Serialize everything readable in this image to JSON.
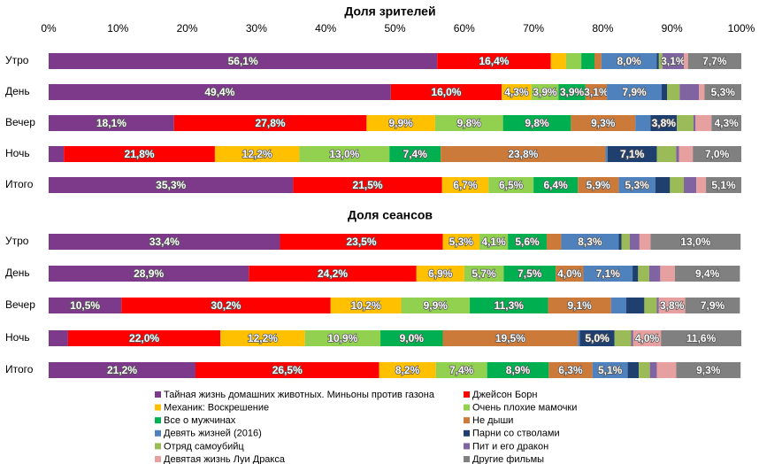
{
  "chart_data": [
    {
      "type": "stacked-bar",
      "title": "Доля зрителей",
      "categories": [
        "Утро",
        "День",
        "Вечер",
        "Ночь",
        "Итого"
      ],
      "xlim": [
        0,
        100
      ],
      "xticks": [
        {
          "value": 0,
          "label": "0%"
        },
        {
          "value": 10,
          "label": "10%"
        },
        {
          "value": 20,
          "label": "20%"
        },
        {
          "value": 30,
          "label": "30%"
        },
        {
          "value": 40,
          "label": "40%"
        },
        {
          "value": 50,
          "label": "50%"
        },
        {
          "value": 60,
          "label": "60%"
        },
        {
          "value": 70,
          "label": "70%"
        },
        {
          "value": 80,
          "label": "80%"
        },
        {
          "value": 90,
          "label": "90%"
        },
        {
          "value": 100,
          "label": "100%"
        }
      ],
      "series": [
        {
          "name": "Тайная жизнь домашних животных. Миньоны против газона",
          "color": "#7e3a8a",
          "values": [
            56.1,
            49.4,
            18.1,
            2.2,
            35.3
          ],
          "value_labels": [
            "56,1%",
            "49,4%",
            "18,1%",
            null,
            "35,3%"
          ]
        },
        {
          "name": "Джейсон Борн",
          "color": "#ff0000",
          "values": [
            16.4,
            16.0,
            27.8,
            21.8,
            21.5
          ],
          "value_labels": [
            "16,4%",
            "16,0%",
            "27,8%",
            "21,8%",
            "21,5%"
          ]
        },
        {
          "name": "Механик: Воскрешение",
          "color": "#ffc000",
          "values": [
            2.2,
            4.3,
            9.9,
            12.2,
            6.7
          ],
          "value_labels": [
            null,
            "4,3%",
            "9,9%",
            "12,2%",
            "6,7%"
          ]
        },
        {
          "name": "Очень плохие мамочки",
          "color": "#92d050",
          "values": [
            2.2,
            3.9,
            9.8,
            13.0,
            6.5
          ],
          "value_labels": [
            null,
            "3,9%",
            "9,8%",
            "13,0%",
            "6,5%"
          ]
        },
        {
          "name": "Все о мужчинах",
          "color": "#00b050",
          "values": [
            1.9,
            3.9,
            9.8,
            7.4,
            6.4
          ],
          "value_labels": [
            null,
            "3,9%",
            "9,8%",
            "7,4%",
            "6,4%"
          ]
        },
        {
          "name": "Не дыши",
          "color": "#cc7a3a",
          "values": [
            1.0,
            3.1,
            9.3,
            23.8,
            5.9
          ],
          "value_labels": [
            null,
            "3,1%",
            "9,3%",
            "23,8%",
            "5,9%"
          ]
        },
        {
          "name": "Девять жизней (2016)",
          "color": "#4f81bd",
          "values": [
            8.0,
            7.9,
            2.2,
            0.3,
            5.3
          ],
          "value_labels": [
            "8,0%",
            "7,9%",
            null,
            null,
            "5,3%"
          ]
        },
        {
          "name": "Парни со стволами",
          "color": "#1f3f6e",
          "values": [
            0.3,
            0.8,
            3.8,
            7.1,
            2.1
          ],
          "value_labels": [
            null,
            null,
            "3,8%",
            "7,1%",
            null
          ]
        },
        {
          "name": "Отряд самоубийц",
          "color": "#9bbb59",
          "values": [
            0.5,
            1.8,
            2.4,
            2.8,
            2.0
          ],
          "value_labels": [
            null,
            null,
            null,
            null,
            null
          ]
        },
        {
          "name": "Пит и его дракон",
          "color": "#8064a2",
          "values": [
            3.1,
            2.8,
            0.3,
            0.4,
            1.8
          ],
          "value_labels": [
            "3,1%",
            null,
            null,
            null,
            null
          ]
        },
        {
          "name": "Девятая жизнь Луи Дракса",
          "color": "#e6a0a0",
          "values": [
            0.6,
            0.8,
            2.3,
            2.0,
            1.4
          ],
          "value_labels": [
            null,
            null,
            null,
            null,
            null
          ]
        },
        {
          "name": "Другие фильмы",
          "color": "#808080",
          "values": [
            7.7,
            5.3,
            4.3,
            7.0,
            5.1
          ],
          "value_labels": [
            "7,7%",
            "5,3%",
            "4,3%",
            "7,0%",
            "5,1%"
          ]
        }
      ]
    },
    {
      "type": "stacked-bar",
      "title": "Доля сеансов",
      "categories": [
        "Утро",
        "День",
        "Вечер",
        "Ночь",
        "Итого"
      ],
      "xlim": [
        0,
        100
      ],
      "series": [
        {
          "values": [
            33.4,
            28.9,
            10.5,
            2.8,
            21.2
          ],
          "value_labels": [
            "33,4%",
            "28,9%",
            "10,5%",
            null,
            "21,2%"
          ]
        },
        {
          "values": [
            23.5,
            24.2,
            30.2,
            22.0,
            26.5
          ],
          "value_labels": [
            "23,5%",
            "24,2%",
            "30,2%",
            "22,0%",
            "26,5%"
          ]
        },
        {
          "values": [
            5.3,
            6.9,
            10.2,
            12.2,
            8.2
          ],
          "value_labels": [
            "5,3%",
            "6,9%",
            "10,2%",
            "12,2%",
            "8,2%"
          ]
        },
        {
          "values": [
            4.1,
            5.7,
            9.9,
            10.9,
            7.4
          ],
          "value_labels": [
            "4,1%",
            "5,7%",
            "9,9%",
            "10,9%",
            "7,4%"
          ]
        },
        {
          "values": [
            5.6,
            7.5,
            11.3,
            9.0,
            8.9
          ],
          "value_labels": [
            "5,6%",
            "7,5%",
            "11,3%",
            "9,0%",
            "8,9%"
          ]
        },
        {
          "values": [
            2.1,
            4.0,
            9.1,
            19.5,
            6.3
          ],
          "value_labels": [
            null,
            "4,0%",
            "9,1%",
            "19,5%",
            "6,3%"
          ]
        },
        {
          "values": [
            8.3,
            7.1,
            2.2,
            0.3,
            5.1
          ],
          "value_labels": [
            "8,3%",
            "7,1%",
            null,
            null,
            "5,1%"
          ]
        },
        {
          "values": [
            0.4,
            0.8,
            2.6,
            5.0,
            1.6
          ],
          "value_labels": [
            null,
            null,
            null,
            "5,0%",
            null
          ]
        },
        {
          "values": [
            1.2,
            1.6,
            1.8,
            2.4,
            1.6
          ],
          "value_labels": [
            null,
            null,
            null,
            null,
            null
          ]
        },
        {
          "values": [
            1.4,
            1.6,
            0.3,
            0.3,
            1.0
          ],
          "value_labels": [
            null,
            null,
            null,
            null,
            null
          ]
        },
        {
          "values": [
            1.6,
            2.1,
            3.8,
            4.0,
            2.8
          ],
          "value_labels": [
            null,
            null,
            "3,8%",
            "4,0%",
            null
          ]
        },
        {
          "values": [
            13.0,
            9.4,
            7.9,
            11.6,
            9.3
          ],
          "value_labels": [
            "13,0%",
            "9,4%",
            "7,9%",
            "11,6%",
            "9,3%"
          ]
        }
      ]
    }
  ]
}
